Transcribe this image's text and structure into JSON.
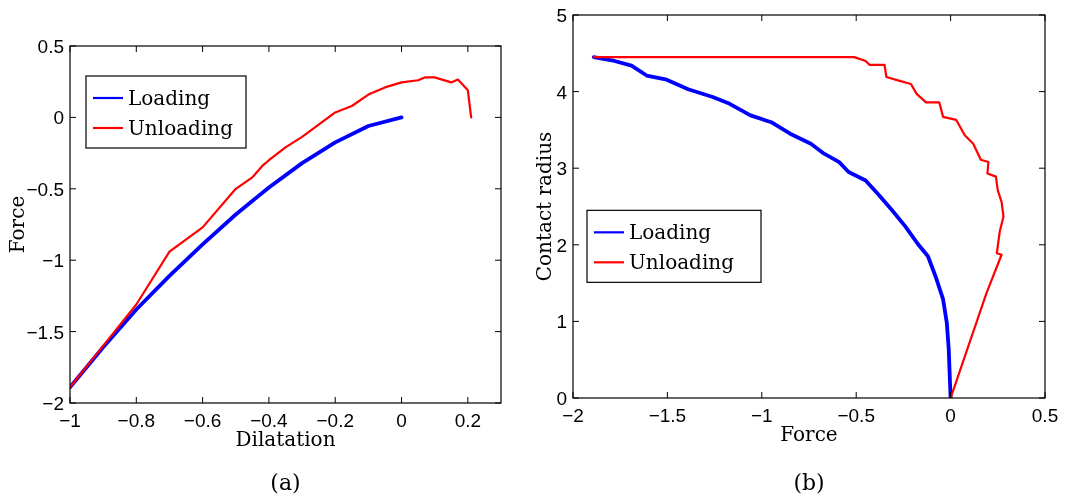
{
  "chart_data": [
    {
      "type": "line",
      "xlabel": "Dilatation",
      "ylabel": "Force",
      "annotations": [
        "(a)"
      ],
      "xlim": [
        -1,
        0.3
      ],
      "ylim": [
        -2,
        0.5
      ],
      "xticks": [
        -1,
        -0.8,
        -0.6,
        -0.4,
        -0.2,
        0,
        0.2
      ],
      "yticks": [
        -2,
        -1.5,
        -1,
        -0.5,
        0,
        0.5
      ],
      "legend": "top left",
      "grid": false,
      "line_style": "solid",
      "marker": "none",
      "series": [
        {
          "name": "Loading",
          "color": "#0000ff",
          "x": [
            -1,
            -0.9,
            -0.8,
            -0.7,
            -0.6,
            -0.5,
            -0.4,
            -0.3,
            -0.2,
            -0.1,
            0
          ],
          "values": [
            -1.89,
            -1.61,
            -1.345,
            -1.11,
            -0.889,
            -0.68,
            -0.491,
            -0.32,
            -0.175,
            -0.06,
            0
          ]
        },
        {
          "name": "Unloading",
          "color": "#ff0000",
          "x": [
            -1,
            -0.9,
            -0.8,
            -0.7,
            -0.6,
            -0.5,
            -0.45,
            -0.42,
            -0.4,
            -0.35,
            -0.3,
            -0.25,
            -0.2,
            -0.15,
            -0.1,
            -0.05,
            0,
            0.05,
            0.07,
            0.1,
            0.15,
            0.17,
            0.2,
            0.21
          ],
          "values": [
            -1.89,
            -1.6,
            -1.31,
            -0.94,
            -0.77,
            -0.5,
            -0.42,
            -0.34,
            -0.3,
            -0.21,
            -0.136,
            -0.05,
            0.035,
            0.08,
            0.16,
            0.21,
            0.245,
            0.26,
            0.28,
            0.28,
            0.245,
            0.265,
            0.19,
            0
          ]
        }
      ]
    },
    {
      "type": "line",
      "xlabel": "Force",
      "ylabel": "Contact radius",
      "annotations": [
        "(b)"
      ],
      "xlim": [
        -2,
        0.5
      ],
      "ylim": [
        0,
        5
      ],
      "xticks": [
        -2,
        -1.5,
        -1,
        -0.5,
        0,
        0.5
      ],
      "yticks": [
        0,
        1,
        2,
        3,
        4,
        5
      ],
      "legend": "left",
      "grid": false,
      "line_style": "solid",
      "marker": "none",
      "series": [
        {
          "name": "Loading",
          "color": "#0000ff",
          "x": [
            -1.89,
            -1.78,
            -1.69,
            -1.61,
            -1.51,
            -1.39,
            -1.26,
            -1.17,
            -1.06,
            -0.95,
            -0.85,
            -0.74,
            -0.67,
            -0.59,
            -0.54,
            -0.45,
            -0.38,
            -0.31,
            -0.24,
            -0.17,
            -0.12,
            -0.08,
            -0.04,
            -0.02,
            -0.01,
            0
          ],
          "values": [
            4.45,
            4.4,
            4.34,
            4.21,
            4.16,
            4.03,
            3.93,
            3.84,
            3.69,
            3.6,
            3.45,
            3.32,
            3.19,
            3.08,
            2.95,
            2.84,
            2.65,
            2.45,
            2.24,
            2.0,
            1.85,
            1.59,
            1.29,
            0.98,
            0.64,
            0
          ]
        },
        {
          "name": "Unloading",
          "color": "#ff0000",
          "x": [
            -1.89,
            -0.51,
            -0.45,
            -0.43,
            -0.35,
            -0.34,
            -0.27,
            -0.21,
            -0.18,
            -0.13,
            -0.06,
            -0.04,
            0.03,
            0.075,
            0.12,
            0.16,
            0.2,
            0.195,
            0.24,
            0.25,
            0.27,
            0.28,
            0.26,
            0.245,
            0.27,
            0.19,
            0
          ],
          "values": [
            4.45,
            4.45,
            4.4,
            4.35,
            4.35,
            4.19,
            4.14,
            4.1,
            3.97,
            3.86,
            3.86,
            3.67,
            3.63,
            3.43,
            3.32,
            3.11,
            3.08,
            2.93,
            2.89,
            2.71,
            2.56,
            2.37,
            2.17,
            1.89,
            1.87,
            1.37,
            0
          ]
        }
      ]
    }
  ]
}
